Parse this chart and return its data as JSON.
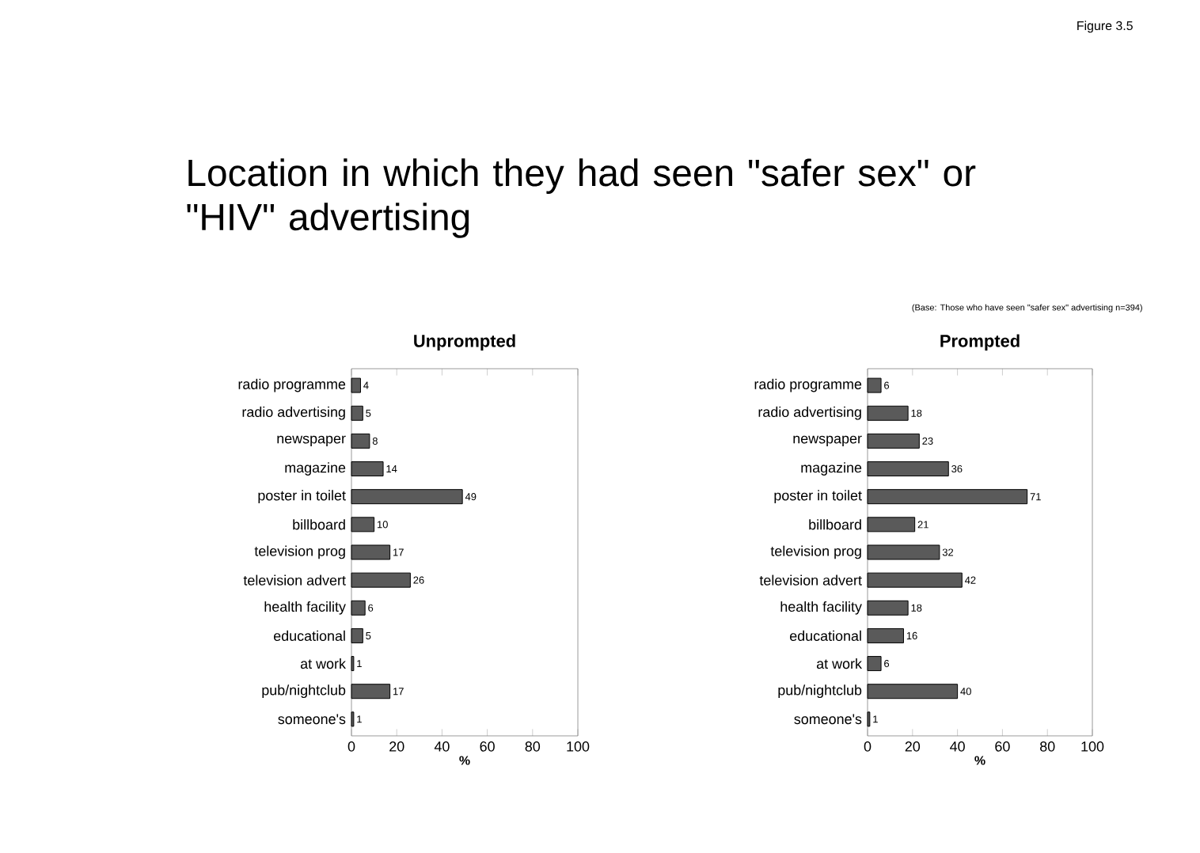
{
  "chart_data": [
    {
      "type": "other",
      "title": "Location in which they had seen \"safer sex\" or \"HIV\" advertising",
      "annotations": [
        "Figure 3.5",
        "(Base: Those who have seen \"safer sex\" advertising n=394)"
      ]
    },
    {
      "type": "bar",
      "orientation": "horizontal",
      "title": "Unprompted",
      "xlabel": "%",
      "categories": [
        "radio programme",
        "radio advertising",
        "newspaper",
        "magazine",
        "poster in toilet",
        "billboard",
        "television prog",
        "television advert",
        "health facility",
        "educational",
        "at work",
        "pub/nightclub",
        "someone's"
      ],
      "values": [
        4,
        5,
        8,
        14,
        49,
        10,
        17,
        26,
        6,
        5,
        1,
        17,
        1
      ],
      "color": "#5a5a5a",
      "data_labels": true,
      "xlim": [
        0,
        100
      ],
      "xticks": [
        0,
        20,
        40,
        60,
        80,
        100
      ]
    },
    {
      "type": "bar",
      "orientation": "horizontal",
      "title": "Prompted",
      "xlabel": "%",
      "categories": [
        "radio programme",
        "radio advertising",
        "newspaper",
        "magazine",
        "poster in toilet",
        "billboard",
        "television prog",
        "television advert",
        "health facility",
        "educational",
        "at work",
        "pub/nightclub",
        "someone's"
      ],
      "values": [
        6,
        18,
        23,
        36,
        71,
        21,
        32,
        42,
        18,
        16,
        6,
        40,
        1
      ],
      "color": "#5a5a5a",
      "data_labels": true,
      "xlim": [
        0,
        100
      ],
      "xticks": [
        0,
        20,
        40,
        60,
        80,
        100
      ]
    }
  ]
}
